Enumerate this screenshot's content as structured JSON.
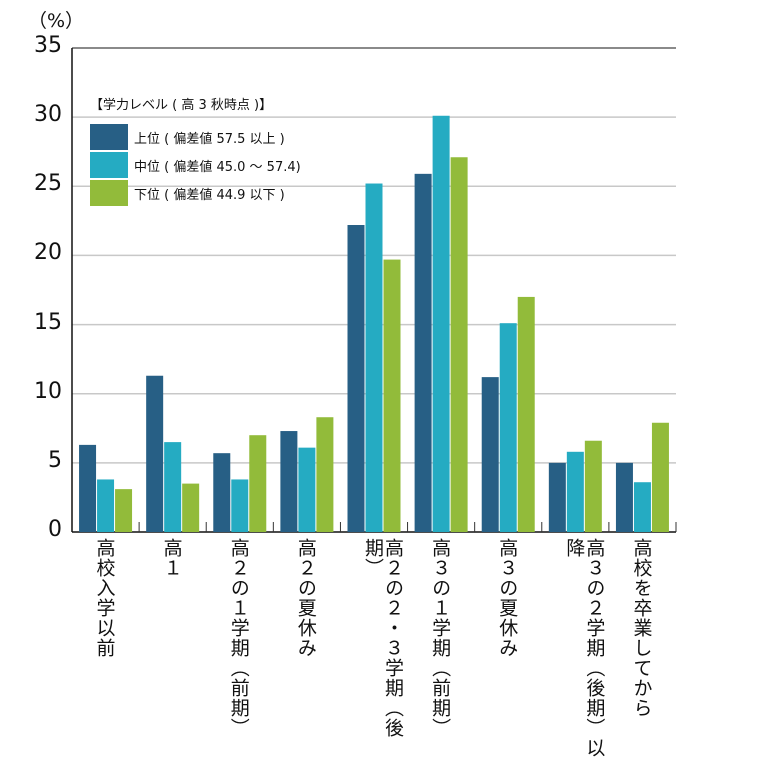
{
  "chart_data": {
    "type": "bar",
    "unit_label": "（%）",
    "ylim": [
      0,
      35
    ],
    "yticks": [
      "0",
      "5",
      "10",
      "15",
      "20",
      "25",
      "30",
      "35"
    ],
    "grid": true,
    "legend_placement": "top-left",
    "legend_title": "【学力レベル ( 高 3 秋時点 )】",
    "categories": [
      "高校入学以前",
      "高１",
      "高２の１学期（前期）",
      "高２の夏休み",
      "高２の２・３学期（後期）",
      "高３の１学期（前期）",
      "高３の夏休み",
      "高３の２学期（後期）以降",
      "高校を卒業してから"
    ],
    "series": [
      {
        "name": "上位 ( 偏差値 57.5 以上 )",
        "color": "#275f85",
        "values": [
          6.3,
          11.3,
          5.7,
          7.3,
          22.2,
          25.9,
          11.2,
          5.0,
          5.0
        ]
      },
      {
        "name": "中位 ( 偏差値 45.0 〜 57.4)",
        "color": "#25abc2",
        "values": [
          3.8,
          6.5,
          3.8,
          6.1,
          25.2,
          30.1,
          15.1,
          5.8,
          3.6
        ]
      },
      {
        "name": "下位 ( 偏差値 44.9 以下 )",
        "color": "#92bb3a",
        "values": [
          3.1,
          3.5,
          7.0,
          8.3,
          19.7,
          27.1,
          17.0,
          6.6,
          7.9
        ]
      }
    ]
  }
}
